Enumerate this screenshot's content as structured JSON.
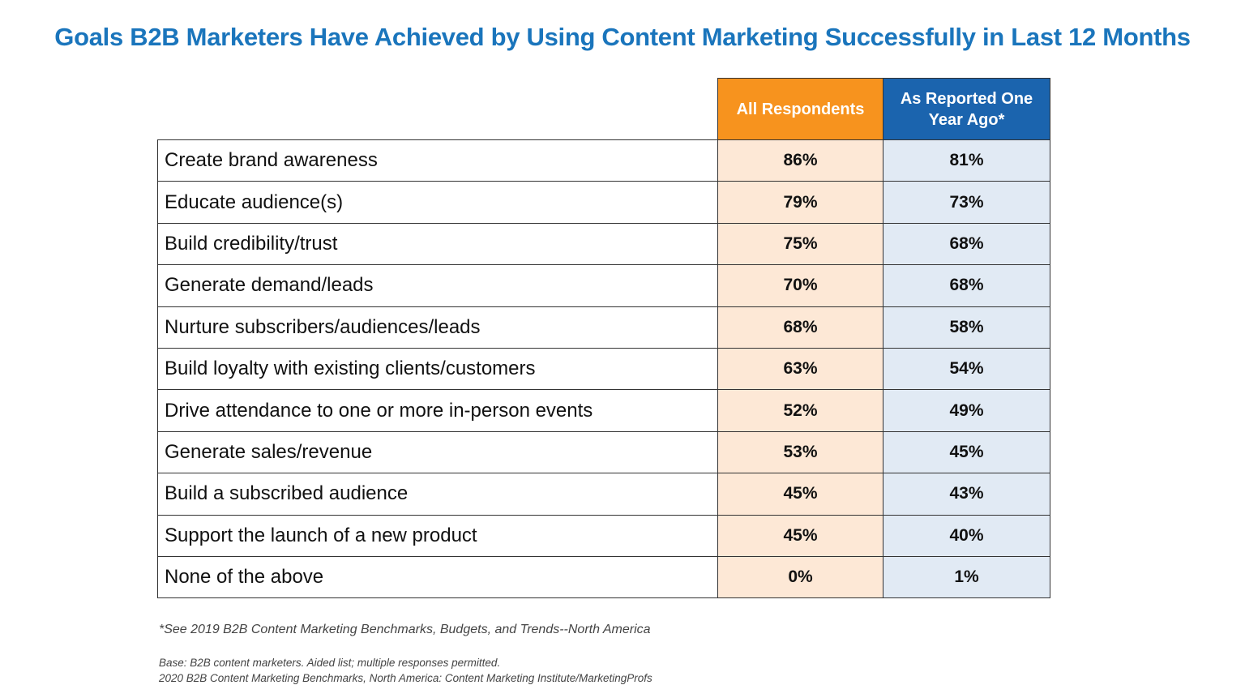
{
  "chart_data": {
    "type": "table",
    "title": "Goals B2B Marketers Have Achieved by Using Content Marketing Successfully in Last 12 Months",
    "columns": [
      "All Respondents",
      "As Reported One Year Ago*"
    ],
    "column_colors": [
      "#f7931e",
      "#1b64ae"
    ],
    "cell_colors": [
      "#fde8d6",
      "#e1eaf4"
    ],
    "rows": [
      {
        "label": "Create brand awareness",
        "values": [
          "86%",
          "81%"
        ]
      },
      {
        "label": "Educate audience(s)",
        "values": [
          "79%",
          "73%"
        ]
      },
      {
        "label": "Build credibility/trust",
        "values": [
          "75%",
          "68%"
        ]
      },
      {
        "label": "Generate demand/leads",
        "values": [
          "70%",
          "68%"
        ]
      },
      {
        "label": "Nurture subscribers/audiences/leads",
        "values": [
          "68%",
          "58%"
        ]
      },
      {
        "label": "Build loyalty with existing clients/customers",
        "values": [
          "63%",
          "54%"
        ]
      },
      {
        "label": "Drive attendance to one or more in-person events",
        "values": [
          "52%",
          "49%"
        ]
      },
      {
        "label": "Generate sales/revenue",
        "values": [
          "53%",
          "45%"
        ]
      },
      {
        "label": "Build a subscribed audience",
        "values": [
          "45%",
          "43%"
        ]
      },
      {
        "label": "Support the launch of a new product",
        "values": [
          "45%",
          "40%"
        ]
      },
      {
        "label": "None of the above",
        "values": [
          "0%",
          "1%"
        ]
      }
    ],
    "footnote": "*See 2019 B2B Content Marketing Benchmarks, Budgets, and Trends--North America",
    "base": "Base: B2B content marketers. Aided list; multiple responses permitted.",
    "source": "2020 B2B Content Marketing Benchmarks, North America: Content Marketing Institute/MarketingProfs"
  }
}
